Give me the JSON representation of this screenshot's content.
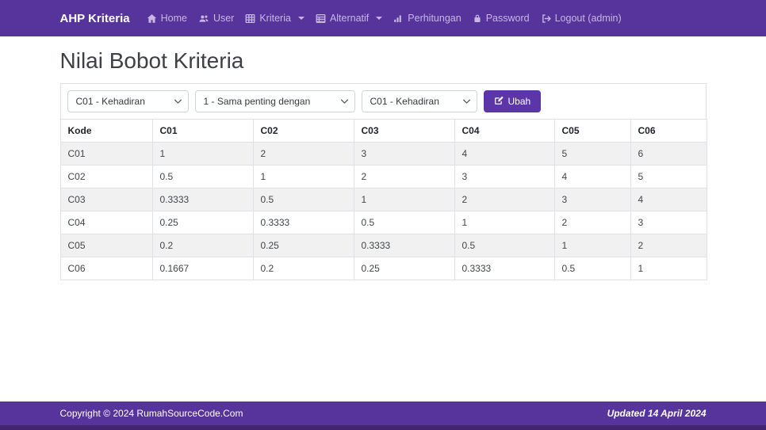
{
  "navbar": {
    "brand": "AHP Kriteria",
    "items": {
      "home": "Home",
      "user": "User",
      "kriteria": "Kriteria",
      "alternatif": "Alternatif",
      "perhitungan": "Perhitungan",
      "password": "Password",
      "logout": "Logout (admin)"
    }
  },
  "page": {
    "title": "Nilai Bobot Kriteria"
  },
  "form": {
    "kriteria_left_selected": "C01 - Kehadiran",
    "intensity_selected": "1 - Sama penting dengan",
    "kriteria_right_selected": "C01 - Kehadiran",
    "submit_label": "Ubah"
  },
  "table": {
    "headers": [
      "Kode",
      "C01",
      "C02",
      "C03",
      "C04",
      "C05",
      "C06"
    ],
    "rows": [
      [
        "C01",
        "1",
        "2",
        "3",
        "4",
        "5",
        "6"
      ],
      [
        "C02",
        "0.5",
        "1",
        "2",
        "3",
        "4",
        "5"
      ],
      [
        "C03",
        "0.3333",
        "0.5",
        "1",
        "2",
        "3",
        "4"
      ],
      [
        "C04",
        "0.25",
        "0.3333",
        "0.5",
        "1",
        "2",
        "3"
      ],
      [
        "C05",
        "0.2",
        "0.25",
        "0.3333",
        "0.5",
        "1",
        "2"
      ],
      [
        "C06",
        "0.1667",
        "0.2",
        "0.25",
        "0.3333",
        "0.5",
        "1"
      ]
    ]
  },
  "footer": {
    "copyright": "Copyright © 2024 RumahSourceCode.Com",
    "updated": "Updated 14 April 2024"
  },
  "colors": {
    "primary": "#56349b",
    "button": "#5c35a8",
    "footer_strip": "#40256f",
    "stripe": "#f1f1f1",
    "table_border": "#dee2e6"
  }
}
